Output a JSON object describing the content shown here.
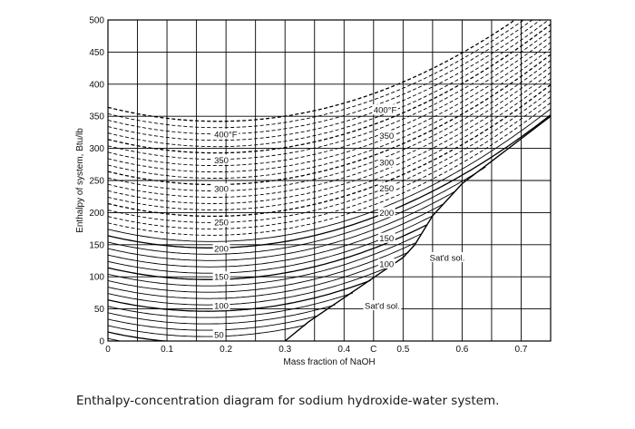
{
  "caption": "Enthalpy-concentration diagram for sodium hydroxide-water system.",
  "chart_data": {
    "type": "line",
    "xlabel": "Mass fraction of NaOH",
    "ylabel": "Enthalpy of system, Btu/lb",
    "xlim": [
      0,
      0.75
    ],
    "ylim": [
      0,
      500
    ],
    "grid": true,
    "x_ticks": [
      {
        "value": 0,
        "label": "0"
      },
      {
        "value": 0.1,
        "label": "0.1"
      },
      {
        "value": 0.2,
        "label": "0.2"
      },
      {
        "value": 0.3,
        "label": "0.3"
      },
      {
        "value": 0.4,
        "label": "0.4"
      },
      {
        "value": 0.45,
        "label": "C"
      },
      {
        "value": 0.5,
        "label": "0.5"
      },
      {
        "value": 0.6,
        "label": "0.6"
      },
      {
        "value": 0.7,
        "label": "0.7"
      }
    ],
    "y_ticks": [
      0,
      50,
      100,
      150,
      200,
      250,
      300,
      350,
      400,
      450,
      500
    ],
    "isotherm_step_F": 10,
    "isotherm_range_F": [
      40,
      400
    ],
    "dashed_above_F": 210,
    "isotherm_labels": [
      {
        "text": "400°F",
        "x": 0.18,
        "y": 322
      },
      {
        "text": "350",
        "x": 0.18,
        "y": 282
      },
      {
        "text": "300",
        "x": 0.18,
        "y": 237
      },
      {
        "text": "250",
        "x": 0.18,
        "y": 185
      },
      {
        "text": "200",
        "x": 0.18,
        "y": 144
      },
      {
        "text": "150",
        "x": 0.18,
        "y": 100
      },
      {
        "text": "100",
        "x": 0.18,
        "y": 55
      },
      {
        "text": "50",
        "x": 0.18,
        "y": 10
      },
      {
        "text": "400°F",
        "x": 0.45,
        "y": 360
      },
      {
        "text": "350",
        "x": 0.46,
        "y": 320
      },
      {
        "text": "300",
        "x": 0.46,
        "y": 278
      },
      {
        "text": "250",
        "x": 0.46,
        "y": 238
      },
      {
        "text": "200",
        "x": 0.46,
        "y": 200
      },
      {
        "text": "150",
        "x": 0.46,
        "y": 160
      },
      {
        "text": "100",
        "x": 0.46,
        "y": 120
      }
    ],
    "saturation_curve": {
      "x": [
        0.3,
        0.34,
        0.38,
        0.42,
        0.46,
        0.5,
        0.52,
        0.55,
        0.6,
        0.65,
        0.7,
        0.75
      ],
      "y": [
        0,
        30,
        55,
        80,
        105,
        130,
        150,
        195,
        245,
        280,
        315,
        350
      ]
    },
    "annotations": [
      {
        "text": "Sat'd sol.",
        "x": 0.435,
        "y": 55
      },
      {
        "text": "Sat'd sol.",
        "x": 0.545,
        "y": 130
      }
    ]
  }
}
